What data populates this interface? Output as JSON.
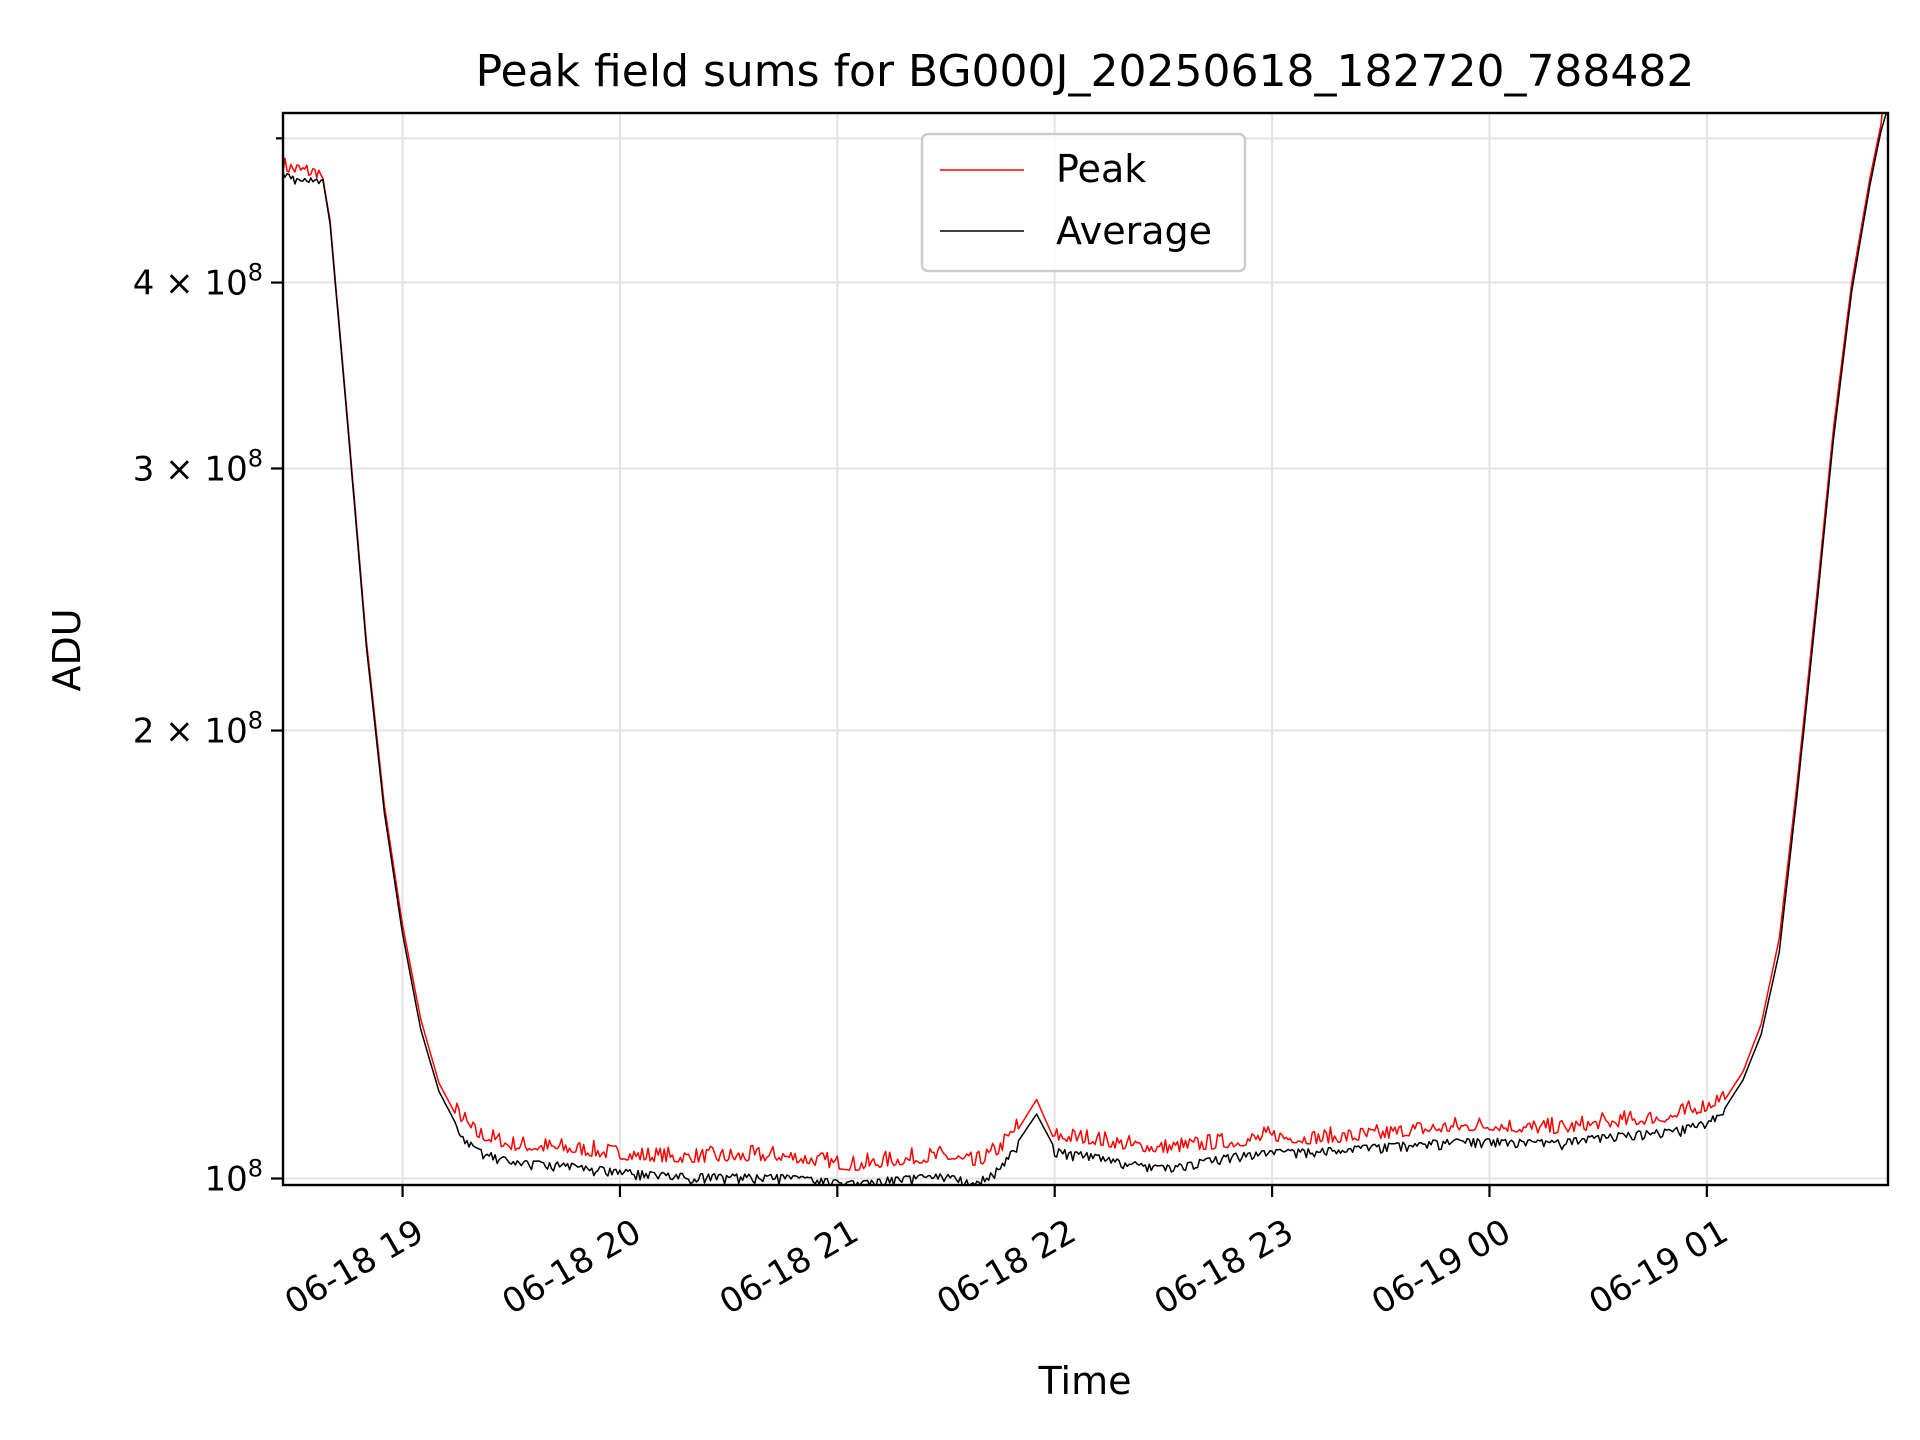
{
  "chart_data": {
    "type": "line",
    "title": "Peak field sums for BG000J_20250618_182720_788482",
    "xlabel": "Time",
    "ylabel": "ADU",
    "yscale": "log",
    "grid": true,
    "legend_placement": "top-center",
    "x_range": [
      "2025-06-18 18:27",
      "2025-06-19 01:50"
    ],
    "ylim": [
      99000000,
      520000000
    ],
    "x_ticks": [
      {
        "value": "2025-06-18 19:00",
        "label": "06-18 19"
      },
      {
        "value": "2025-06-18 20:00",
        "label": "06-18 20"
      },
      {
        "value": "2025-06-18 21:00",
        "label": "06-18 21"
      },
      {
        "value": "2025-06-18 22:00",
        "label": "06-18 22"
      },
      {
        "value": "2025-06-18 23:00",
        "label": "06-18 23"
      },
      {
        "value": "2025-06-19 00:00",
        "label": "06-19 00"
      },
      {
        "value": "2025-06-19 01:00",
        "label": "06-19 01"
      }
    ],
    "y_ticks": [
      {
        "value": 100000000,
        "base": "10",
        "exp": "8"
      },
      {
        "value": 200000000,
        "base": "2 × 10",
        "exp": "8"
      },
      {
        "value": 300000000,
        "base": "3 × 10",
        "exp": "8"
      },
      {
        "value": 400000000,
        "base": "4 × 10",
        "exp": "8"
      }
    ],
    "minor_y_ticks": [
      500000000
    ],
    "series": [
      {
        "name": "Peak",
        "color": "#ff0000",
        "x": [
          "2025-06-18 18:27",
          "2025-06-18 18:33",
          "2025-06-18 18:38",
          "2025-06-18 18:40",
          "2025-06-18 18:45",
          "2025-06-18 18:50",
          "2025-06-18 18:55",
          "2025-06-18 19:00",
          "2025-06-18 19:05",
          "2025-06-18 19:10",
          "2025-06-18 19:15",
          "2025-06-18 19:20",
          "2025-06-18 19:30",
          "2025-06-18 19:45",
          "2025-06-18 20:00",
          "2025-06-18 20:15",
          "2025-06-18 20:30",
          "2025-06-18 20:45",
          "2025-06-18 21:00",
          "2025-06-18 21:05",
          "2025-06-18 21:15",
          "2025-06-18 21:30",
          "2025-06-18 21:38",
          "2025-06-18 21:45",
          "2025-06-18 21:50",
          "2025-06-18 21:55",
          "2025-06-18 22:00",
          "2025-06-18 22:10",
          "2025-06-18 22:20",
          "2025-06-18 22:30",
          "2025-06-18 22:40",
          "2025-06-18 22:50",
          "2025-06-18 23:00",
          "2025-06-18 23:10",
          "2025-06-18 23:20",
          "2025-06-18 23:30",
          "2025-06-18 23:40",
          "2025-06-18 23:50",
          "2025-06-19 00:00",
          "2025-06-19 00:10",
          "2025-06-19 00:20",
          "2025-06-19 00:30",
          "2025-06-19 00:40",
          "2025-06-19 00:50",
          "2025-06-19 01:00",
          "2025-06-19 01:05",
          "2025-06-19 01:10",
          "2025-06-19 01:15",
          "2025-06-19 01:20",
          "2025-06-19 01:25",
          "2025-06-19 01:30",
          "2025-06-19 01:35",
          "2025-06-19 01:40",
          "2025-06-19 01:45",
          "2025-06-19 01:48",
          "2025-06-19 01:50"
        ],
        "values": [
          475000000,
          472000000,
          470000000,
          440000000,
          320000000,
          230000000,
          178000000,
          148000000,
          128000000,
          116000000,
          110000000,
          106500000,
          104500000,
          104000000,
          103000000,
          102500000,
          102600000,
          102800000,
          101500000,
          101200000,
          102000000,
          102800000,
          101500000,
          104000000,
          108000000,
          113000000,
          106000000,
          105500000,
          104500000,
          104000000,
          104500000,
          105000000,
          106000000,
          105500000,
          105800000,
          106200000,
          107000000,
          107500000,
          107800000,
          107300000,
          107200000,
          108000000,
          108600000,
          109200000,
          111000000,
          113000000,
          118000000,
          127000000,
          145000000,
          185000000,
          242000000,
          320000000,
          400000000,
          470000000,
          510000000,
          525000000
        ]
      },
      {
        "name": "Average",
        "color": "#000000",
        "x": [
          "2025-06-18 18:27",
          "2025-06-18 18:33",
          "2025-06-18 18:38",
          "2025-06-18 18:40",
          "2025-06-18 18:45",
          "2025-06-18 18:50",
          "2025-06-18 18:55",
          "2025-06-18 19:00",
          "2025-06-18 19:05",
          "2025-06-18 19:10",
          "2025-06-18 19:15",
          "2025-06-18 19:20",
          "2025-06-18 19:30",
          "2025-06-18 19:45",
          "2025-06-18 20:00",
          "2025-06-18 20:15",
          "2025-06-18 20:30",
          "2025-06-18 20:45",
          "2025-06-18 21:00",
          "2025-06-18 21:05",
          "2025-06-18 21:15",
          "2025-06-18 21:30",
          "2025-06-18 21:38",
          "2025-06-18 21:45",
          "2025-06-18 21:50",
          "2025-06-18 21:55",
          "2025-06-18 22:00",
          "2025-06-18 22:10",
          "2025-06-18 22:20",
          "2025-06-18 22:30",
          "2025-06-18 22:40",
          "2025-06-18 22:50",
          "2025-06-18 23:00",
          "2025-06-18 23:10",
          "2025-06-18 23:20",
          "2025-06-18 23:30",
          "2025-06-18 23:40",
          "2025-06-18 23:50",
          "2025-06-19 00:00",
          "2025-06-19 00:10",
          "2025-06-19 00:20",
          "2025-06-19 00:30",
          "2025-06-19 00:40",
          "2025-06-19 00:50",
          "2025-06-19 01:00",
          "2025-06-19 01:05",
          "2025-06-19 01:10",
          "2025-06-19 01:15",
          "2025-06-19 01:20",
          "2025-06-19 01:25",
          "2025-06-19 01:30",
          "2025-06-19 01:35",
          "2025-06-19 01:40",
          "2025-06-19 01:45",
          "2025-06-19 01:48",
          "2025-06-19 01:50"
        ],
        "values": [
          474000000,
          471000000,
          469000000,
          438000000,
          318000000,
          228000000,
          176000000,
          146000000,
          126000000,
          114500000,
          108500000,
          105000000,
          103000000,
          102500000,
          101500000,
          100800000,
          100700000,
          100600000,
          99800000,
          99600000,
          100300000,
          100800000,
          99700000,
          102000000,
          106000000,
          110500000,
          104800000,
          104000000,
          102800000,
          102000000,
          103000000,
          104000000,
          104600000,
          104700000,
          105000000,
          105500000,
          106000000,
          106300000,
          106500000,
          106200000,
          106200000,
          107000000,
          107600000,
          108000000,
          109500000,
          111500000,
          116500000,
          125000000,
          142000000,
          182000000,
          238000000,
          315000000,
          395000000,
          465000000,
          505000000,
          525000000
        ]
      }
    ]
  }
}
